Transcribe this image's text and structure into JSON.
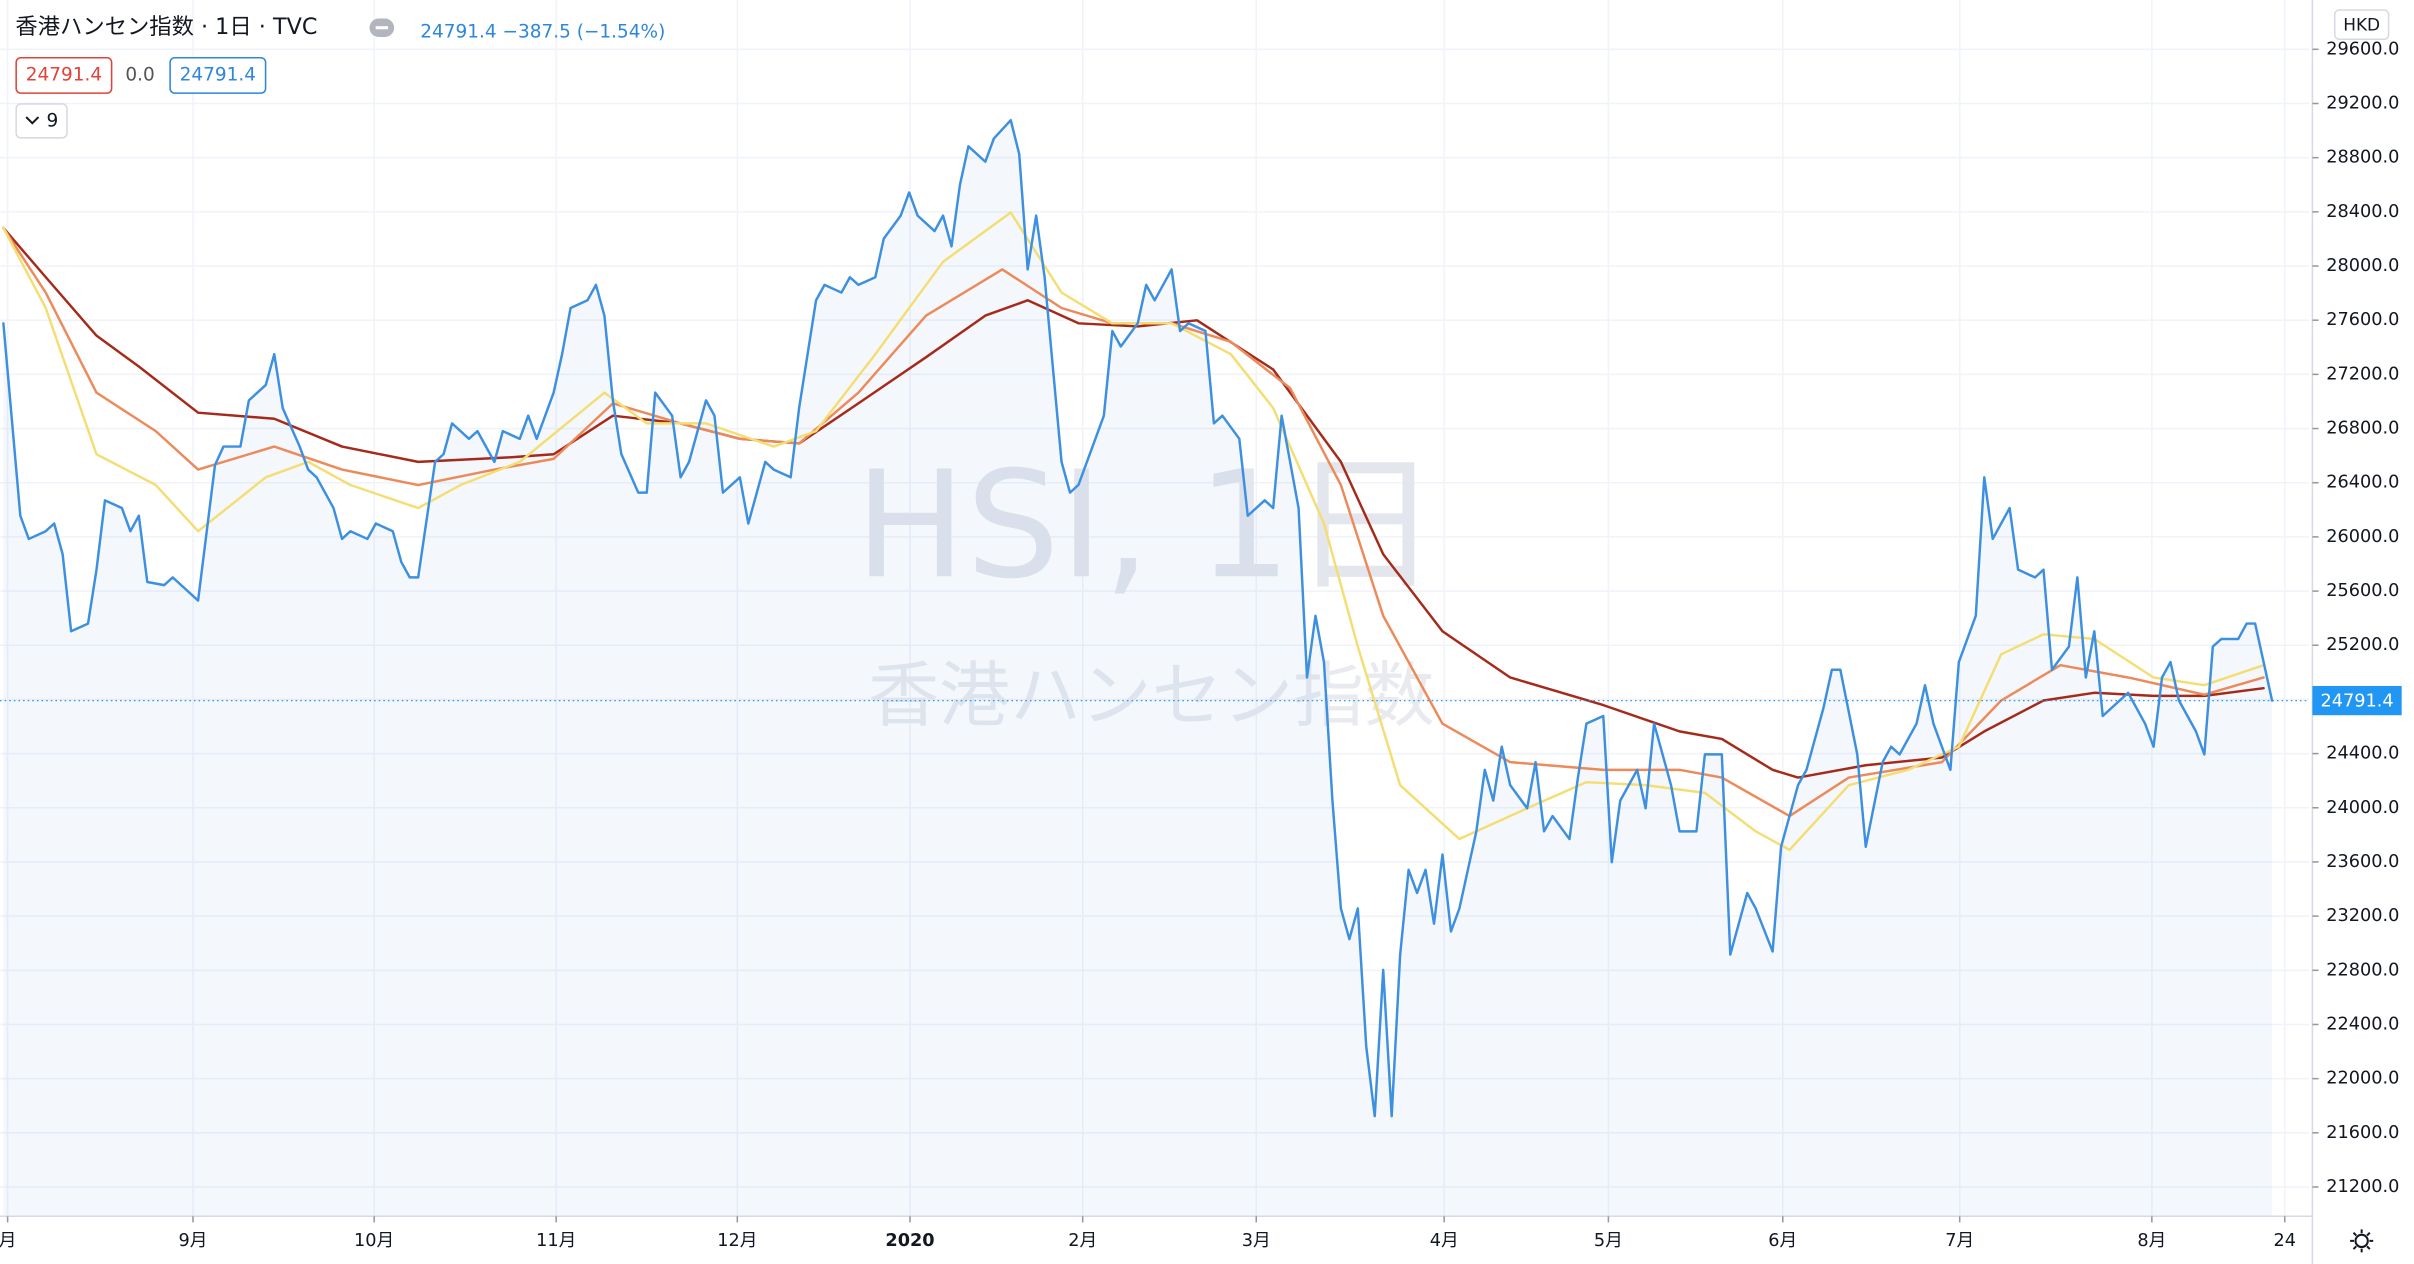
{
  "ui": {
    "title": "香港ハンセン指数 · 1日 · TVC",
    "quote": "24791.4 −387.5 (−1.54%)",
    "box_close": "24791.4",
    "box_change": "0.0",
    "box_price": "24791.4",
    "indicator_count": "9",
    "currency": "HKD",
    "watermark_symbol": "HSI, 1日",
    "watermark_name": "香港ハンセン指数"
  },
  "chart_data": {
    "type": "line",
    "grid": true,
    "last_price": 24791.4,
    "last_price_color": "#2196f3",
    "xlim": [
      -0.4,
      272.4
    ],
    "ylim": [
      20984,
      29964
    ],
    "xticks": [
      {
        "value": 0.5,
        "label": "月"
      },
      {
        "value": 22.4,
        "label": "9月"
      },
      {
        "value": 43.8,
        "label": "10月"
      },
      {
        "value": 65.3,
        "label": "11月"
      },
      {
        "value": 86.7,
        "label": "12月"
      },
      {
        "value": 107.1,
        "label": "2020"
      },
      {
        "value": 127.5,
        "label": "2月"
      },
      {
        "value": 148,
        "label": "3月"
      },
      {
        "value": 170.2,
        "label": "4月"
      },
      {
        "value": 189.6,
        "label": "5月"
      },
      {
        "value": 210.2,
        "label": "6月"
      },
      {
        "value": 231.1,
        "label": "7月"
      },
      {
        "value": 253.8,
        "label": "8月"
      },
      {
        "value": 269.5,
        "label": "24"
      }
    ],
    "yticks": [
      {
        "value": 21200,
        "label": "21200.0"
      },
      {
        "value": 21600,
        "label": "21600.0"
      },
      {
        "value": 22000,
        "label": "22000.0"
      },
      {
        "value": 22400,
        "label": "22400.0"
      },
      {
        "value": 22800,
        "label": "22800.0"
      },
      {
        "value": 23200,
        "label": "23200.0"
      },
      {
        "value": 23600,
        "label": "23600.0"
      },
      {
        "value": 24000,
        "label": "24000.0"
      },
      {
        "value": 24400,
        "label": "24400.0"
      },
      {
        "value": 24800,
        "label": "24800.0"
      },
      {
        "value": 25200,
        "label": "25200.0"
      },
      {
        "value": 25600,
        "label": "25600.0"
      },
      {
        "value": 26000,
        "label": "26000.0"
      },
      {
        "value": 26400,
        "label": "26400.0"
      },
      {
        "value": 26800,
        "label": "26800.0"
      },
      {
        "value": 27200,
        "label": "27200.0"
      },
      {
        "value": 27600,
        "label": "27600.0"
      },
      {
        "value": 28000,
        "label": "28000.0"
      },
      {
        "value": 28400,
        "label": "28400.0"
      },
      {
        "value": 28800,
        "label": "28800.0"
      },
      {
        "value": 29200,
        "label": "29200.0"
      },
      {
        "value": 29600,
        "label": "29600.0"
      }
    ],
    "series": [
      {
        "color": "#a52a1a",
        "x": [
          0,
          5,
          11,
          16,
          23,
          32,
          40,
          49,
          60,
          65,
          72,
          80,
          87,
          94,
          101,
          109,
          116,
          121,
          127,
          134,
          141,
          150,
          158,
          163,
          170,
          178,
          189,
          198,
          203,
          209,
          212,
          220,
          229,
          234,
          241,
          247,
          254,
          260,
          267
        ],
        "values": [
          28281,
          27918,
          27486,
          27258,
          26917,
          26872,
          26667,
          26554,
          26588,
          26610,
          26895,
          26838,
          26724,
          26690,
          26986,
          27327,
          27634,
          27747,
          27577,
          27554,
          27599,
          27236,
          26554,
          25872,
          25303,
          24962,
          24758,
          24564,
          24508,
          24280,
          24223,
          24314,
          24371,
          24564,
          24792,
          24849,
          24826,
          24826,
          24883
        ]
      },
      {
        "color": "#ec8a5a",
        "x": [
          0,
          5,
          11,
          18,
          23,
          32,
          40,
          49,
          58,
          65,
          72,
          80,
          87,
          94,
          101,
          109,
          118,
          125,
          131,
          138,
          145,
          152,
          158,
          163,
          170,
          178,
          189,
          198,
          203,
          211,
          218,
          229,
          236,
          243,
          251,
          260,
          267
        ],
        "values": [
          28281,
          27804,
          27065,
          26781,
          26497,
          26667,
          26497,
          26383,
          26497,
          26576,
          26986,
          26838,
          26724,
          26690,
          27065,
          27634,
          27975,
          27690,
          27577,
          27577,
          27440,
          27099,
          26383,
          25417,
          24621,
          24337,
          24280,
          24280,
          24223,
          23939,
          24223,
          24337,
          24792,
          25053,
          24962,
          24835,
          24962
        ]
      },
      {
        "color": "#f4de74",
        "x": [
          0,
          5,
          11,
          18,
          23,
          31,
          36,
          41,
          49,
          54,
          61,
          71,
          76,
          83,
          91,
          96,
          103,
          111,
          119,
          125,
          131,
          138,
          145,
          150,
          156,
          160,
          165,
          172,
          180,
          187,
          194,
          201,
          207,
          211,
          218,
          225,
          231,
          236,
          241,
          247,
          254,
          260,
          267
        ],
        "values": [
          28281,
          27690,
          26610,
          26383,
          26042,
          26440,
          26554,
          26383,
          26213,
          26383,
          26554,
          27065,
          26838,
          26838,
          26667,
          26781,
          27349,
          28031,
          28395,
          27804,
          27577,
          27577,
          27349,
          26952,
          26099,
          25190,
          24167,
          23769,
          23996,
          24189,
          24167,
          24110,
          23826,
          23689,
          24167,
          24280,
          24451,
          25133,
          25281,
          25246,
          24962,
          24905,
          25053
        ]
      },
      {
        "color": "#3d8fe0",
        "area": true,
        "x": [
          0,
          2,
          3,
          5,
          6,
          7,
          8,
          10,
          11,
          12,
          14,
          15,
          16,
          17,
          19,
          20,
          21,
          23,
          25,
          26,
          28,
          29,
          31,
          32,
          33,
          35,
          36,
          37,
          39,
          40,
          41,
          43,
          44,
          46,
          47,
          48,
          49,
          51,
          52,
          53,
          55,
          56,
          58,
          59,
          61,
          62,
          63,
          65,
          66,
          67,
          69,
          70,
          71,
          72,
          73,
          75,
          76,
          77,
          79,
          80,
          81,
          83,
          84,
          85,
          87,
          88,
          90,
          91,
          93,
          94,
          96,
          97,
          99,
          100,
          101,
          103,
          104,
          106,
          107,
          108,
          110,
          111,
          112,
          113,
          114,
          116,
          117,
          119,
          120,
          121,
          122,
          123,
          125,
          126,
          127,
          129,
          130,
          131,
          132,
          134,
          135,
          136,
          138,
          139,
          140,
          142,
          143,
          144,
          146,
          147,
          149,
          150,
          151,
          153,
          154,
          155,
          156,
          157,
          158,
          159,
          160,
          161,
          162,
          163,
          164,
          165,
          166,
          167,
          168,
          169,
          170,
          171,
          172,
          174,
          175,
          176,
          177,
          178,
          180,
          181,
          182,
          183,
          185,
          186,
          187,
          189,
          190,
          191,
          193,
          194,
          195,
          197,
          198,
          200,
          201,
          203,
          204,
          206,
          207,
          209,
          210,
          212,
          213,
          215,
          216,
          217,
          219,
          220,
          222,
          223,
          224,
          226,
          227,
          228,
          230,
          231,
          233,
          234,
          235,
          237,
          238,
          240,
          241,
          242,
          244,
          245,
          246,
          247,
          248,
          250,
          251,
          253,
          254,
          255,
          256,
          257,
          259,
          260,
          261,
          262,
          264,
          265,
          266,
          267,
          268
        ],
        "values": [
          27577,
          26156,
          25985,
          26042,
          26099,
          25872,
          25303,
          25360,
          25758,
          26270,
          26213,
          26042,
          26156,
          25667,
          25644,
          25701,
          25644,
          25530,
          26531,
          26667,
          26667,
          27008,
          27122,
          27349,
          26951,
          26667,
          26497,
          26440,
          26213,
          25985,
          26042,
          25985,
          26099,
          26042,
          25815,
          25701,
          25701,
          26554,
          26611,
          26838,
          26724,
          26781,
          26554,
          26781,
          26724,
          26895,
          26724,
          27065,
          27349,
          27690,
          27747,
          27861,
          27633,
          27008,
          26611,
          26327,
          26327,
          27065,
          26895,
          26440,
          26554,
          27008,
          26895,
          26327,
          26440,
          26099,
          26554,
          26497,
          26440,
          26951,
          27747,
          27861,
          27804,
          27917,
          27861,
          27917,
          28202,
          28372,
          28543,
          28372,
          28258,
          28372,
          28145,
          28600,
          28884,
          28770,
          28941,
          29077,
          28827,
          27975,
          28372,
          27917,
          26554,
          26327,
          26384,
          26724,
          26895,
          27520,
          27406,
          27577,
          27861,
          27747,
          27975,
          27520,
          27577,
          27520,
          26838,
          26895,
          26724,
          26156,
          26270,
          26213,
          26895,
          26213,
          24962,
          25417,
          25076,
          24053,
          23257,
          23030,
          23257,
          22234,
          21723,
          22803,
          21723,
          22916,
          23542,
          23371,
          23542,
          23144,
          23655,
          23087,
          23257,
          23826,
          24280,
          24053,
          24451,
          24167,
          23996,
          24337,
          23826,
          23939,
          23769,
          24223,
          24621,
          24678,
          23598,
          24053,
          24280,
          23996,
          24621,
          24167,
          23826,
          23826,
          24394,
          24394,
          22916,
          23371,
          23257,
          22939,
          23712,
          24167,
          24280,
          24735,
          25019,
          25019,
          24394,
          23712,
          24337,
          24451,
          24394,
          24621,
          24905,
          24621,
          24280,
          25076,
          25417,
          26440,
          25985,
          26213,
          25758,
          25701,
          25758,
          25019,
          25190,
          25701,
          24962,
          25303,
          24678,
          24792,
          24849,
          24621,
          24451,
          24962,
          25076,
          24792,
          24565,
          24394,
          25190,
          25246,
          25246,
          25360,
          25360,
          25076,
          24791.4
        ]
      }
    ]
  }
}
